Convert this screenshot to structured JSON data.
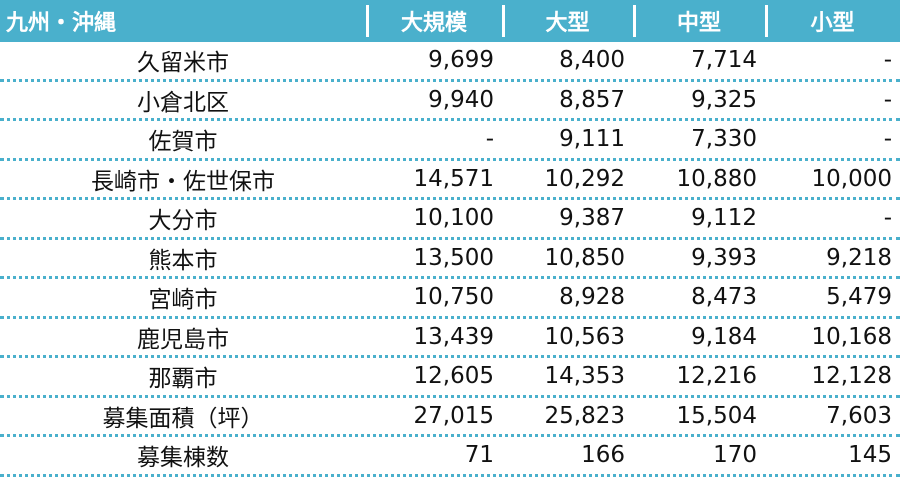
{
  "header": [
    "九州・沖縄",
    "大規模",
    "大型",
    "中型",
    "小型"
  ],
  "rows": [
    [
      "久留米市",
      "9,699",
      "8,400",
      "7,714",
      "-"
    ],
    [
      "小倉北区",
      "9,940",
      "8,857",
      "9,325",
      "-"
    ],
    [
      "佐賀市",
      "-",
      "9,111",
      "7,330",
      "-"
    ],
    [
      "長崎市・佐世保市",
      "14,571",
      "10,292",
      "10,880",
      "10,000"
    ],
    [
      "大分市",
      "10,100",
      "9,387",
      "9,112",
      "-"
    ],
    [
      "熊本市",
      "13,500",
      "10,850",
      "9,393",
      "9,218"
    ],
    [
      "宮崎市",
      "10,750",
      "8,928",
      "8,473",
      "5,479"
    ],
    [
      "鹿児島市",
      "13,439",
      "10,563",
      "9,184",
      "10,168"
    ],
    [
      "那覇市",
      "12,605",
      "14,353",
      "12,216",
      "12,128"
    ],
    [
      "募集面積（坪）",
      "27,015",
      "25,823",
      "15,504",
      "7,603"
    ],
    [
      "募集棟数",
      "71",
      "166",
      "170",
      "145"
    ]
  ],
  "colors": {
    "header_bg": "#4ab0cc",
    "header_text": "#ffffff",
    "divider": "#4ab0cc"
  }
}
